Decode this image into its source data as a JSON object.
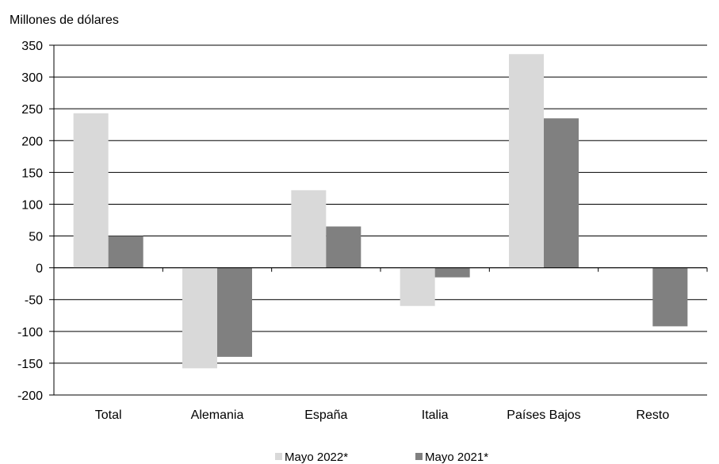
{
  "chart_data": {
    "type": "bar",
    "ylabel": "Millones de dólares",
    "xlabel": "",
    "ylim": [
      -200,
      350
    ],
    "yticks": [
      350,
      300,
      250,
      200,
      150,
      100,
      50,
      0,
      -50,
      -100,
      -150,
      -200
    ],
    "grid": true,
    "legend_position": "bottom",
    "categories": [
      "Total",
      "Alemania",
      "España",
      "Italia",
      "Países Bajos",
      "Resto"
    ],
    "series": [
      {
        "name": "Mayo 2022*",
        "color": "#d9d9d9",
        "values": [
          243,
          -158,
          122,
          -60,
          336,
          0
        ]
      },
      {
        "name": "Mayo 2021*",
        "color": "#808080",
        "values": [
          50,
          -140,
          65,
          -15,
          235,
          -92
        ]
      }
    ]
  }
}
